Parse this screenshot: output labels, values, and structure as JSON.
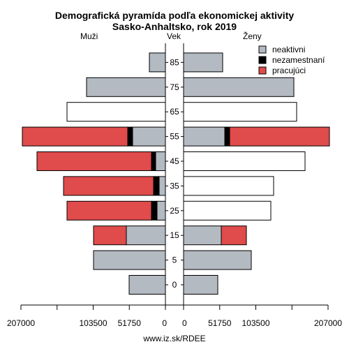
{
  "chart_data": {
    "type": "bar",
    "title": "Demografická pyramída podľa ekonomickej aktivity",
    "subtitle": "Sasko-Anhaltsko, rok 2019",
    "left_label": "Muži",
    "center_label": "Vek",
    "right_label": "Ženy",
    "age_groups": [
      "0",
      "5",
      "15",
      "25",
      "35",
      "45",
      "55",
      "65",
      "75",
      "85"
    ],
    "xlim": [
      0,
      207000
    ],
    "x_ticks": [
      {
        "value": 207000,
        "label": "207000"
      },
      {
        "value": 155250,
        "label": ""
      },
      {
        "value": 103500,
        "label": "103500"
      },
      {
        "value": 51750,
        "label": "51750"
      },
      {
        "value": 0,
        "label": "0"
      }
    ],
    "series": [
      {
        "name": "neaktivni",
        "color": "#b4bac1"
      },
      {
        "name": "nezamestnaní",
        "color": "#000000"
      },
      {
        "name": "pracujúci",
        "color": "#e04b4b"
      }
    ],
    "men": [
      {
        "age": "0",
        "neaktivni": 52000,
        "nezamestnani": 0,
        "pracujuci": 0
      },
      {
        "age": "5",
        "neaktivni": 103000,
        "nezamestnani": 0,
        "pracujuci": 0
      },
      {
        "age": "15",
        "neaktivni": 56000,
        "nezamestnani": 0,
        "pracujuci": 47000
      },
      {
        "age": "25",
        "neaktivni": 12000,
        "nezamestnani": 8000,
        "pracujuci": 121000
      },
      {
        "age": "35",
        "neaktivni": 9000,
        "nezamestnani": 8000,
        "pracujuci": 129000
      },
      {
        "age": "45",
        "neaktivni": 14000,
        "nezamestnani": 6000,
        "pracujuci": 164000
      },
      {
        "age": "55",
        "neaktivni": 47000,
        "nezamestnani": 7000,
        "pracujuci": 151000
      },
      {
        "age": "65",
        "neaktivni": 141000,
        "nezamestnani": 0,
        "pracujuci": 0,
        "white": true
      },
      {
        "age": "75",
        "neaktivni": 113000,
        "nezamestnani": 0,
        "pracujuci": 0
      },
      {
        "age": "85",
        "neaktivni": 23000,
        "nezamestnani": 0,
        "pracujuci": 0
      }
    ],
    "women": [
      {
        "age": "0",
        "neaktivni": 49000,
        "nezamestnani": 0,
        "pracujuci": 0
      },
      {
        "age": "5",
        "neaktivni": 97000,
        "nezamestnani": 0,
        "pracujuci": 0
      },
      {
        "age": "15",
        "neaktivni": 54000,
        "nezamestnani": 0,
        "pracujuci": 36000
      },
      {
        "age": "25",
        "neaktivni": 125000,
        "nezamestnani": 0,
        "pracujuci": 0,
        "white": true
      },
      {
        "age": "35",
        "neaktivni": 129000,
        "nezamestnani": 0,
        "pracujuci": 0,
        "white": true
      },
      {
        "age": "45",
        "neaktivni": 174000,
        "nezamestnani": 0,
        "pracujuci": 0,
        "white": true
      },
      {
        "age": "55",
        "neaktivni": 59000,
        "nezamestnani": 7000,
        "pracujuci": 143000
      },
      {
        "age": "65",
        "neaktivni": 162000,
        "nezamestnani": 0,
        "pracujuci": 0,
        "white": true
      },
      {
        "age": "75",
        "neaktivni": 158000,
        "nezamestnani": 0,
        "pracujuci": 0
      },
      {
        "age": "85",
        "neaktivni": 56000,
        "nezamestnani": 0,
        "pracujuci": 0
      }
    ],
    "legend_position": "top-right",
    "grid": false
  },
  "footer": {
    "source": "www.iz.sk/RDEE"
  }
}
